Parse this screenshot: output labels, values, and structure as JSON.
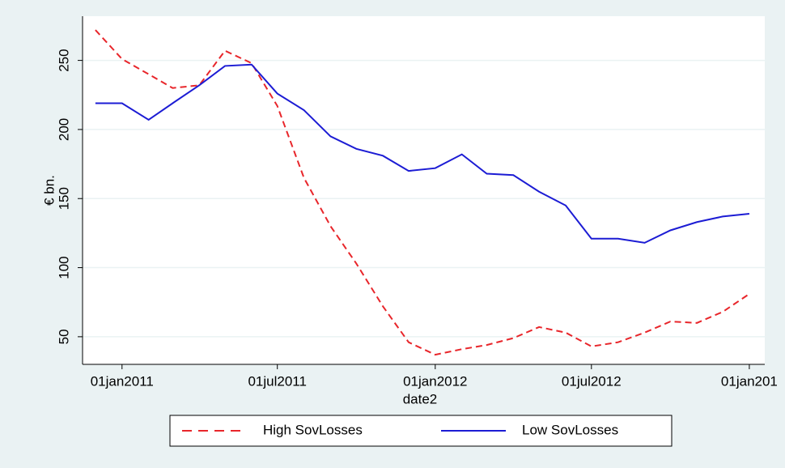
{
  "chart_data": {
    "type": "line",
    "y_label": "€ bn.",
    "x_label": "date2",
    "x": [
      "2010-12-01",
      "2011-01-01",
      "2011-02-01",
      "2011-03-01",
      "2011-04-01",
      "2011-05-01",
      "2011-06-01",
      "2011-07-01",
      "2011-08-01",
      "2011-09-01",
      "2011-10-01",
      "2011-11-01",
      "2011-12-01",
      "2012-01-01",
      "2012-02-01",
      "2012-03-01",
      "2012-04-01",
      "2012-05-01",
      "2012-06-01",
      "2012-07-01",
      "2012-08-01",
      "2012-09-01",
      "2012-10-01",
      "2012-11-01",
      "2012-12-01",
      "2013-01-01"
    ],
    "series": [
      {
        "name": "High SovLosses",
        "color": "#e8262b",
        "line_style": "dashed",
        "values": [
          272,
          251,
          240,
          230,
          232,
          257,
          248,
          217,
          165,
          130,
          103,
          72,
          46,
          37,
          41,
          44,
          49,
          57,
          53,
          43,
          46,
          53,
          61,
          60,
          68,
          81
        ]
      },
      {
        "name": "Low SovLosses",
        "color": "#1c1cd4",
        "line_style": "solid",
        "values": [
          219,
          219,
          207,
          219,
          232,
          246,
          247,
          226,
          214,
          195,
          186,
          181,
          170,
          172,
          182,
          168,
          167,
          155,
          145,
          121,
          121,
          118,
          127,
          133,
          137,
          139
        ]
      }
    ],
    "xlim": [
      "2010-11-16",
      "2013-01-19"
    ],
    "xticks": [
      {
        "value": "2011-01-01",
        "label": "01jan2011"
      },
      {
        "value": "2011-07-01",
        "label": "01jul2011"
      },
      {
        "value": "2012-01-01",
        "label": "01jan2012"
      },
      {
        "value": "2012-07-01",
        "label": "01jul2012"
      },
      {
        "value": "2013-01-01",
        "label": "01jan201"
      }
    ],
    "ylim": [
      30,
      282
    ],
    "yticks": [
      50,
      100,
      150,
      200,
      250
    ],
    "grid": true,
    "legend_position": "bottom"
  }
}
